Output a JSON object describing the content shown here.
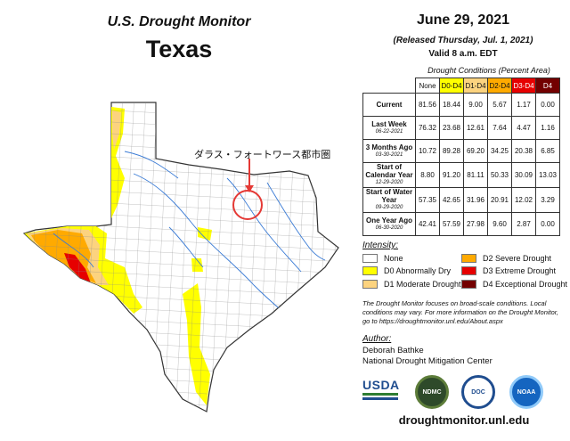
{
  "map": {
    "title_small": "U.S. Drought Monitor",
    "title_state": "Texas",
    "annotation": "ダラス・フォートワース都市圏"
  },
  "header": {
    "date": "June 29, 2021",
    "released": "(Released Thursday, Jul. 1, 2021)",
    "valid": "Valid 8 a.m. EDT"
  },
  "conditions": {
    "title": "Drought Conditions (Percent Area)",
    "columns": [
      "None",
      "D0-D4",
      "D1-D4",
      "D2-D4",
      "D3-D4",
      "D4"
    ],
    "rows": [
      {
        "label": "Current",
        "sub": "",
        "values": [
          "81.56",
          "18.44",
          "9.00",
          "5.67",
          "1.17",
          "0.00"
        ]
      },
      {
        "label": "Last Week",
        "sub": "06-22-2021",
        "values": [
          "76.32",
          "23.68",
          "12.61",
          "7.64",
          "4.47",
          "1.16"
        ]
      },
      {
        "label": "3 Months Ago",
        "sub": "03-30-2021",
        "values": [
          "10.72",
          "89.28",
          "69.20",
          "34.25",
          "20.38",
          "6.85"
        ]
      },
      {
        "label": "Start of Calendar Year",
        "sub": "12-29-2020",
        "values": [
          "8.80",
          "91.20",
          "81.11",
          "50.33",
          "30.09",
          "13.03"
        ]
      },
      {
        "label": "Start of Water Year",
        "sub": "09-29-2020",
        "values": [
          "57.35",
          "42.65",
          "31.96",
          "20.91",
          "12.02",
          "3.29"
        ]
      },
      {
        "label": "One Year Ago",
        "sub": "06-30-2020",
        "values": [
          "42.41",
          "57.59",
          "27.98",
          "9.60",
          "2.87",
          "0.00"
        ]
      }
    ]
  },
  "legend": {
    "title": "Intensity:",
    "items": [
      {
        "label": "None",
        "color": "#ffffff"
      },
      {
        "label": "D0 Abnormally Dry",
        "color": "#ffff00"
      },
      {
        "label": "D1 Moderate Drought",
        "color": "#fcd37f"
      },
      {
        "label": "D2 Severe Drought",
        "color": "#ffaa00"
      },
      {
        "label": "D3 Extreme Drought",
        "color": "#e60000"
      },
      {
        "label": "D4 Exceptional Drought",
        "color": "#730000"
      }
    ]
  },
  "note": "The Drought Monitor focuses on broad-scale conditions. Local conditions may vary. For more information on the Drought Monitor, go to https://droughtmonitor.unl.edu/About.aspx",
  "author": {
    "heading": "Author:",
    "name": "Deborah Bathke",
    "org": "National Drought Mitigation Center"
  },
  "logos": {
    "usda": "USDA",
    "ndmc": "NDMC",
    "doc": "DOC",
    "noaa": "NOAA"
  },
  "footer": {
    "url": "droughtmonitor.unl.edu"
  }
}
